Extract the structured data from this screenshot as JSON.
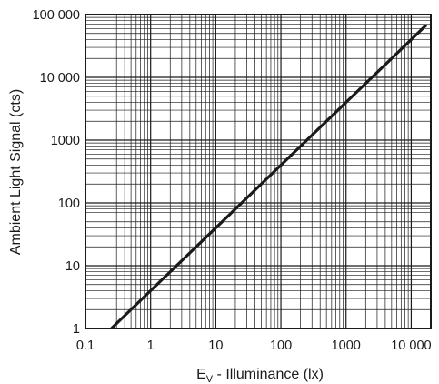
{
  "chart_data": {
    "type": "line",
    "xscale": "log",
    "yscale": "log",
    "xlim": [
      0.1,
      20000
    ],
    "ylim": [
      1,
      100000
    ],
    "xticks": [
      0.1,
      1,
      10,
      100,
      1000,
      10000
    ],
    "xtick_labels": [
      "0.1",
      "1",
      "10",
      "100",
      "1000",
      "10 000"
    ],
    "yticks": [
      1,
      10,
      100,
      1000,
      10000,
      100000
    ],
    "ytick_labels": [
      "1",
      "10",
      "100",
      "1000",
      "10 000",
      "100 000"
    ],
    "xlabel": "E_V - Illuminance (lx)",
    "xlabel_main": "E",
    "xlabel_sub": "V",
    "xlabel_rest": " - Illuminance (lx)",
    "ylabel": "Ambient Light Signal (cts)",
    "grid": true,
    "series": [
      {
        "x": [
          0.25,
          17000
        ],
        "y": [
          1,
          68000
        ]
      }
    ],
    "colors": {
      "line": "#1a1a1a",
      "grid": "#1a1a1a",
      "background": "#ffffff"
    }
  }
}
